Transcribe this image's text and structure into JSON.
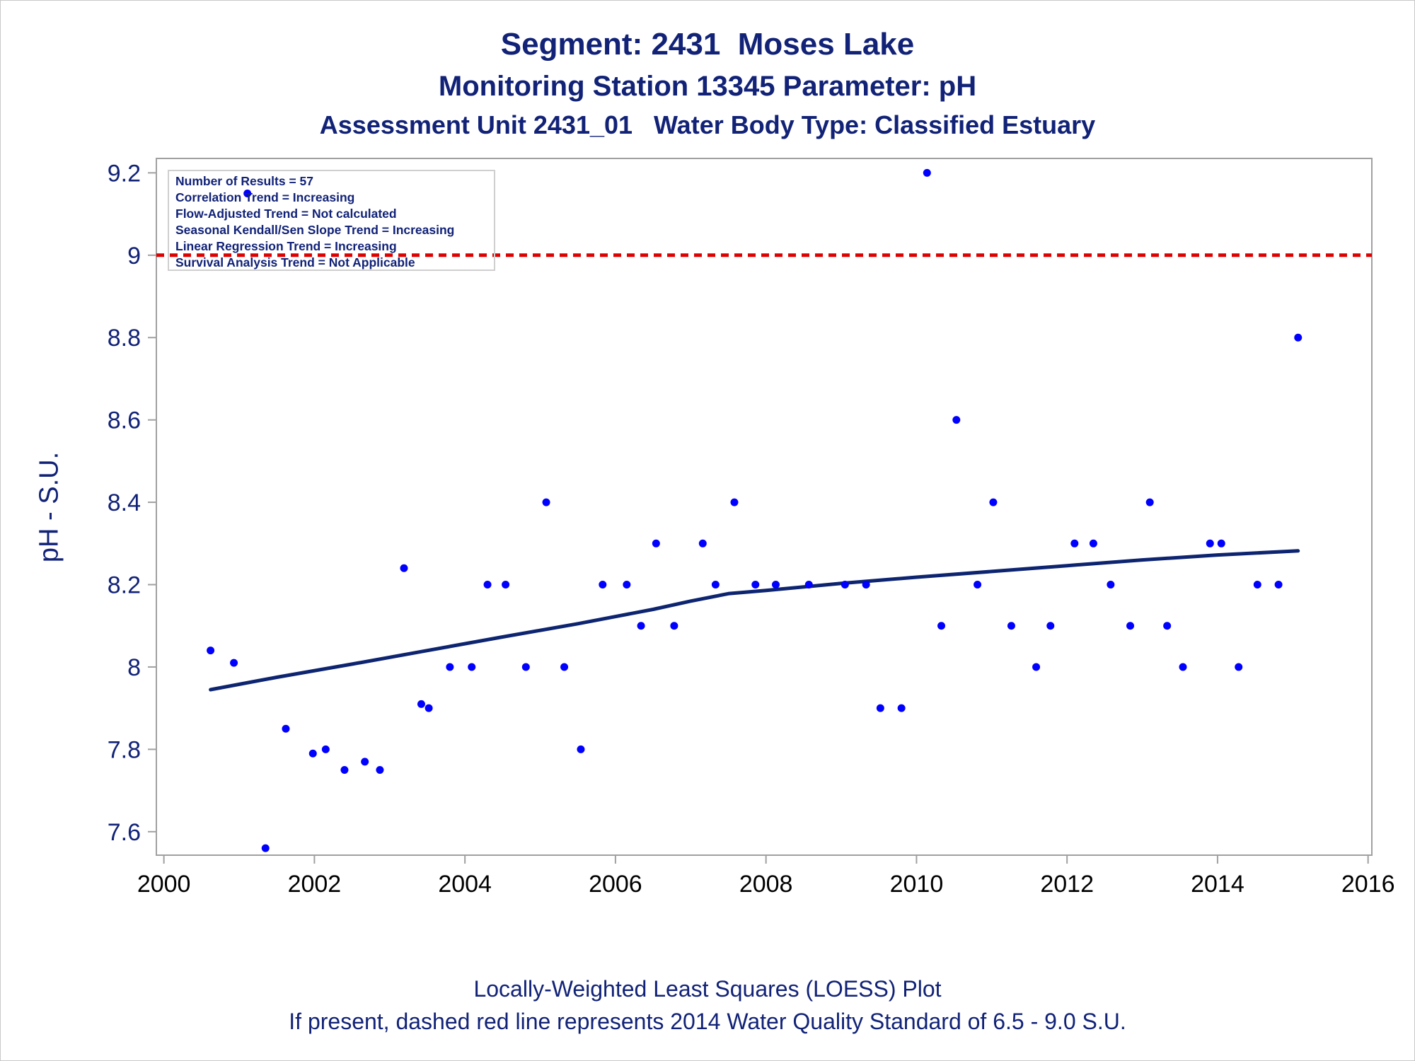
{
  "titles": {
    "line1": "Segment: 2431  Moses Lake",
    "line2": "Monitoring Station 13345 Parameter: pH",
    "line3": "Assessment Unit 2431_01   Water Body Type: Classified Estuary"
  },
  "footnotes": {
    "line1": "Locally-Weighted Least Squares (LOESS) Plot",
    "line2": "If present, dashed red line represents 2014 Water Quality Standard of 6.5 - 9.0 S.U."
  },
  "stats": [
    "Number of Results = 57",
    "Correlation Trend = Increasing",
    "Flow-Adjusted Trend = Not calculated",
    "Seasonal Kendall/Sen Slope Trend = Increasing",
    "Linear Regression Trend = Increasing",
    "Survival Analysis Trend = Not Applicable"
  ],
  "colors": {
    "text": "#112277",
    "points": "#0000ff",
    "loess": "#0d2470",
    "standard_line": "#dd0000",
    "axes": "#a0a0a0"
  },
  "chart_data": {
    "type": "scatter",
    "title": "Segment: 2431  Moses Lake",
    "xlabel": "",
    "ylabel": "pH - S.U.",
    "xlim": [
      1999.9,
      2016.05
    ],
    "ylim": [
      7.543,
      9.235
    ],
    "x_ticks": [
      2000,
      2002,
      2004,
      2006,
      2008,
      2010,
      2012,
      2014,
      2016
    ],
    "y_ticks": [
      7.6,
      7.8,
      8,
      8.2,
      8.4,
      8.6,
      8.8,
      9,
      9.2
    ],
    "grid": false,
    "reference_line": {
      "y": 9.0,
      "style": "dashed",
      "color": "#dd0000"
    },
    "series": [
      {
        "type": "scatter",
        "x": [
          2000.62,
          2000.93,
          2001.11,
          2001.35,
          2001.62,
          2001.98,
          2002.15,
          2002.4,
          2002.67,
          2002.87,
          2003.19,
          2003.42,
          2003.52,
          2003.8,
          2004.09,
          2004.3,
          2004.54,
          2004.81,
          2005.08,
          2005.32,
          2005.54,
          2005.83,
          2006.15,
          2006.34,
          2006.54,
          2006.78,
          2007.16,
          2007.33,
          2007.58,
          2007.86,
          2008.13,
          2008.57,
          2009.05,
          2009.33,
          2009.52,
          2009.8,
          2010.14,
          2010.33,
          2010.53,
          2010.81,
          2011.02,
          2011.26,
          2011.59,
          2011.78,
          2012.1,
          2012.35,
          2012.58,
          2012.84,
          2013.1,
          2013.33,
          2013.54,
          2013.9,
          2014.05,
          2014.28,
          2014.53,
          2014.81,
          2015.07
        ],
        "y": [
          8.04,
          8.01,
          9.15,
          7.56,
          7.85,
          7.79,
          7.8,
          7.75,
          7.77,
          7.75,
          8.24,
          7.91,
          7.9,
          8.0,
          8.0,
          8.2,
          8.2,
          8.0,
          8.4,
          8.0,
          7.8,
          8.2,
          8.2,
          8.1,
          8.3,
          8.1,
          8.3,
          8.2,
          8.4,
          8.2,
          8.2,
          8.2,
          8.2,
          8.2,
          7.9,
          7.9,
          9.2,
          8.1,
          8.6,
          8.2,
          8.4,
          8.1,
          8.0,
          8.1,
          8.3,
          8.3,
          8.2,
          8.1,
          8.4,
          8.1,
          8.0,
          8.3,
          8.3,
          8.0,
          8.2,
          8.2,
          8.8
        ]
      },
      {
        "type": "line",
        "x": [
          2000.62,
          2001.5,
          2002.5,
          2003.5,
          2004.5,
          2005.5,
          2006.5,
          2007.0,
          2007.5,
          2008.0,
          2009.0,
          2010.0,
          2011.0,
          2012.0,
          2013.0,
          2014.0,
          2015.07
        ],
        "y": [
          7.945,
          7.975,
          8.007,
          8.04,
          8.073,
          8.105,
          8.14,
          8.16,
          8.178,
          8.186,
          8.203,
          8.218,
          8.232,
          8.246,
          8.26,
          8.272,
          8.282
        ]
      }
    ]
  }
}
